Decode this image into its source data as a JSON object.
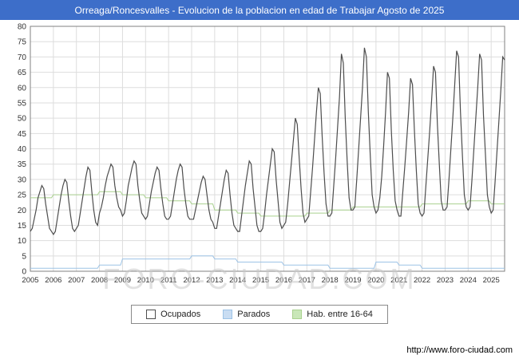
{
  "title_bar": {
    "title": "Orreaga/Roncesvalles - Evolucion de la poblacion en edad de Trabajar Agosto de 2025",
    "bg": "#3d6ec9"
  },
  "watermark": "FORO-CIUDAD.COM",
  "footer": {
    "url": "http://www.foro-ciudad.com"
  },
  "legend": {
    "items": [
      {
        "label": "Ocupados",
        "fill": "#ffffff",
        "border": "#4d4d4d"
      },
      {
        "label": "Parados",
        "fill": "#c9ddf2",
        "border": "#9dc3e6"
      },
      {
        "label": "Hab. entre 16-64",
        "fill": "#c9e7b8",
        "border": "#a9d18e"
      }
    ]
  },
  "chart_data": {
    "type": "line",
    "title": "Orreaga/Roncesvalles - Evolucion de la poblacion en edad de Trabajar Agosto de 2025",
    "x_unit": "month",
    "x_ticks": [
      2005,
      2006,
      2007,
      2008,
      2009,
      2010,
      2011,
      2012,
      2013,
      2014,
      2015,
      2016,
      2017,
      2018,
      2019,
      2020,
      2021,
      2022,
      2023,
      2024,
      2025
    ],
    "ylim": [
      0,
      80
    ],
    "ytick_step": 5,
    "grid": true,
    "legend_position": "bottom",
    "series": [
      {
        "name": "Ocupados",
        "color": "#4d4d4d",
        "monthly_by_year": {
          "2005": [
            13,
            14,
            17,
            20,
            24,
            26,
            28,
            27,
            22,
            18,
            14,
            13
          ],
          "2006": [
            12,
            13,
            17,
            21,
            25,
            28,
            30,
            29,
            23,
            18,
            14,
            13
          ],
          "2007": [
            14,
            15,
            19,
            23,
            27,
            31,
            34,
            33,
            26,
            20,
            16,
            15
          ],
          "2008": [
            19,
            21,
            24,
            28,
            31,
            33,
            35,
            34,
            28,
            24,
            21,
            20
          ],
          "2009": [
            18,
            19,
            23,
            28,
            31,
            34,
            36,
            35,
            28,
            23,
            19,
            18
          ],
          "2010": [
            17,
            18,
            22,
            26,
            29,
            32,
            34,
            33,
            27,
            22,
            18,
            17
          ],
          "2011": [
            17,
            18,
            22,
            26,
            30,
            33,
            35,
            34,
            27,
            22,
            18,
            17
          ],
          "2012": [
            17,
            17,
            20,
            23,
            26,
            29,
            31,
            30,
            25,
            20,
            17,
            16
          ],
          "2013": [
            14,
            14,
            18,
            22,
            26,
            30,
            33,
            32,
            25,
            19,
            15,
            14
          ],
          "2014": [
            13,
            13,
            18,
            23,
            28,
            32,
            36,
            35,
            27,
            21,
            15,
            13
          ],
          "2015": [
            13,
            14,
            19,
            25,
            30,
            35,
            40,
            39,
            30,
            23,
            16,
            14
          ],
          "2016": [
            15,
            16,
            22,
            29,
            36,
            43,
            50,
            48,
            37,
            27,
            19,
            16
          ],
          "2017": [
            17,
            18,
            26,
            34,
            43,
            52,
            60,
            58,
            44,
            32,
            22,
            18
          ],
          "2018": [
            18,
            19,
            28,
            37,
            47,
            57,
            71,
            68,
            50,
            36,
            24,
            20
          ],
          "2019": [
            20,
            21,
            30,
            40,
            50,
            60,
            73,
            70,
            52,
            38,
            25,
            21
          ],
          "2020": [
            19,
            20,
            24,
            31,
            41,
            52,
            65,
            63,
            46,
            33,
            23,
            20
          ],
          "2021": [
            18,
            18,
            26,
            34,
            43,
            52,
            63,
            61,
            46,
            33,
            22,
            19
          ],
          "2022": [
            18,
            19,
            28,
            37,
            46,
            56,
            67,
            65,
            48,
            35,
            23,
            20
          ],
          "2023": [
            20,
            21,
            30,
            40,
            50,
            61,
            72,
            70,
            52,
            38,
            25,
            21
          ],
          "2024": [
            20,
            21,
            30,
            40,
            50,
            60,
            71,
            69,
            51,
            38,
            25,
            21
          ],
          "2025": [
            19,
            20,
            29,
            39,
            49,
            59,
            70,
            69
          ]
        }
      },
      {
        "name": "Parados",
        "color": "#9dc3e6",
        "yearly": {
          "2005": 1,
          "2006": 1,
          "2007": 1,
          "2008": 2,
          "2009": 4,
          "2010": 4,
          "2011": 4,
          "2012": 5,
          "2013": 4,
          "2014": 3,
          "2015": 3,
          "2016": 2,
          "2017": 2,
          "2018": 1,
          "2019": 1,
          "2020": 3,
          "2021": 2,
          "2022": 1,
          "2023": 1,
          "2024": 1,
          "2025": 1
        }
      },
      {
        "name": "Hab. entre 16-64",
        "color": "#a9d18e",
        "yearly": {
          "2005": 24,
          "2006": 25,
          "2007": 25,
          "2008": 26,
          "2009": 25,
          "2010": 24,
          "2011": 23,
          "2012": 22,
          "2013": 20,
          "2014": 19,
          "2015": 18,
          "2016": 18,
          "2017": 19,
          "2018": 20,
          "2019": 21,
          "2020": 21,
          "2021": 21,
          "2022": 22,
          "2023": 22,
          "2024": 23,
          "2025": 22
        }
      }
    ]
  }
}
